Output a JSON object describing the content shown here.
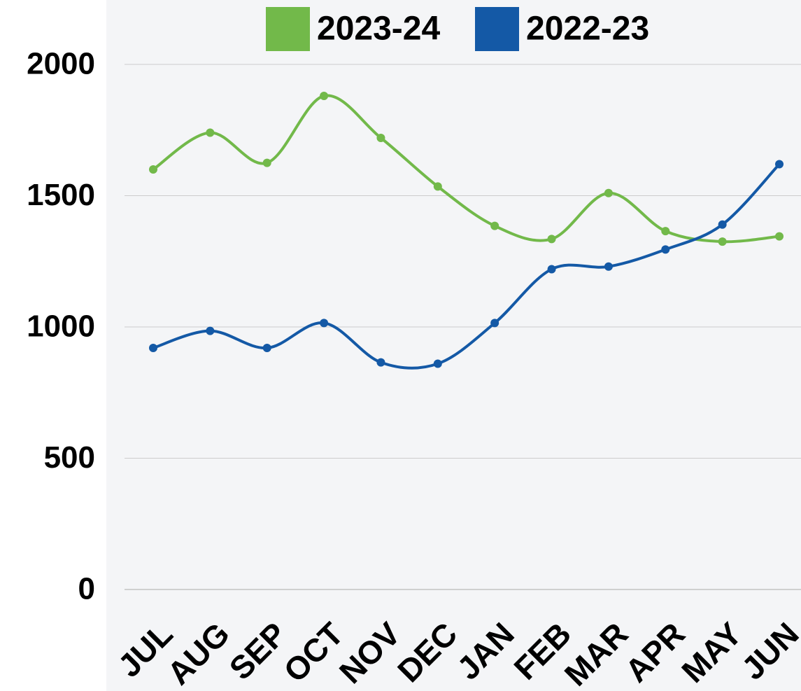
{
  "chart_data": {
    "type": "line",
    "categories": [
      "JUL",
      "AUG",
      "SEP",
      "OCT",
      "NOV",
      "DEC",
      "JAN",
      "FEB",
      "MAR",
      "APR",
      "MAY",
      "JUN"
    ],
    "series": [
      {
        "name": "2023-24",
        "color": "#72b94a",
        "values": [
          1600,
          1740,
          1625,
          1880,
          1720,
          1535,
          1385,
          1335,
          1510,
          1365,
          1325,
          1345
        ]
      },
      {
        "name": "2022-23",
        "color": "#1459a6",
        "values": [
          920,
          985,
          920,
          1015,
          865,
          860,
          1015,
          1220,
          1230,
          1295,
          1390,
          1620
        ]
      }
    ],
    "ylim": [
      0,
      2000
    ],
    "yticks": [
      0,
      500,
      1000,
      1500,
      2000
    ],
    "grid": true,
    "legend": "top"
  }
}
